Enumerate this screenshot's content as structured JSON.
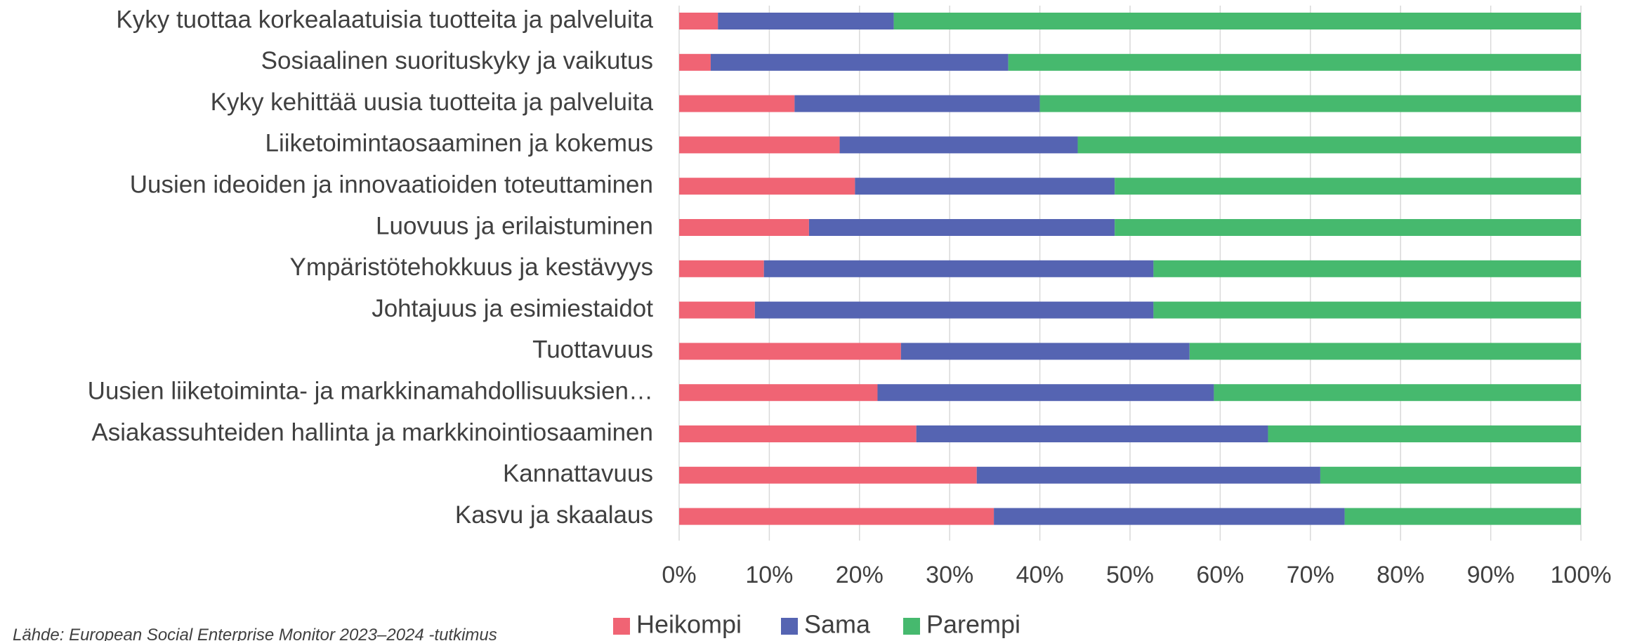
{
  "chart_data": {
    "type": "stacked_barh",
    "categories": [
      "Kyky tuottaa korkealaatuisia tuotteita ja palveluita",
      "Sosiaalinen suorituskyky ja vaikutus",
      "Kyky kehittää uusia tuotteita ja palveluita",
      "Liiketoimintaosaaminen ja kokemus",
      "Uusien ideoiden ja innovaatioiden toteuttaminen",
      "Luovuus ja erilaistuminen",
      "Ympäristötehokkuus ja kestävyys",
      "Johtajuus ja esimiestaidot",
      "Tuottavuus",
      "Uusien liiketoiminta- ja markkinamahdollisuuksien…",
      "Asiakassuhteiden hallinta ja markkinointiosaaminen",
      "Kannattavuus",
      "Kasvu ja skaalaus"
    ],
    "series": [
      {
        "name": "Heikompi",
        "color": "#f06474",
        "values": [
          4.3,
          3.5,
          12.8,
          17.8,
          19.5,
          14.4,
          9.4,
          8.4,
          24.6,
          22,
          26.3,
          33,
          34.9
        ]
      },
      {
        "name": "Sama",
        "color": "#5564b2",
        "values": [
          19.5,
          33,
          27.2,
          26.4,
          28.8,
          33.9,
          43.2,
          44.2,
          32,
          37.3,
          39,
          38.1,
          38.9
        ]
      },
      {
        "name": "Parempi",
        "color": "#46b96e",
        "values": [
          76.2,
          63.5,
          60,
          55.8,
          51.7,
          51.7,
          47.4,
          47.4,
          43.4,
          40.7,
          34.7,
          28.9,
          26.2
        ]
      }
    ],
    "xlim": [
      0,
      100
    ],
    "xticks": [
      {
        "value": 0,
        "label": "0%"
      },
      {
        "value": 10,
        "label": "10%"
      },
      {
        "value": 20,
        "label": "20%"
      },
      {
        "value": 30,
        "label": "30%"
      },
      {
        "value": 40,
        "label": "40%"
      },
      {
        "value": 50,
        "label": "50%"
      },
      {
        "value": 60,
        "label": "60%"
      },
      {
        "value": 70,
        "label": "70%"
      },
      {
        "value": 80,
        "label": "80%"
      },
      {
        "value": 90,
        "label": "90%"
      },
      {
        "value": 100,
        "label": "100%"
      }
    ],
    "grid": true,
    "legend": "bottom",
    "source": "Lähde: European Social Enterprise Monitor 2023–2024 -tutkimus"
  }
}
